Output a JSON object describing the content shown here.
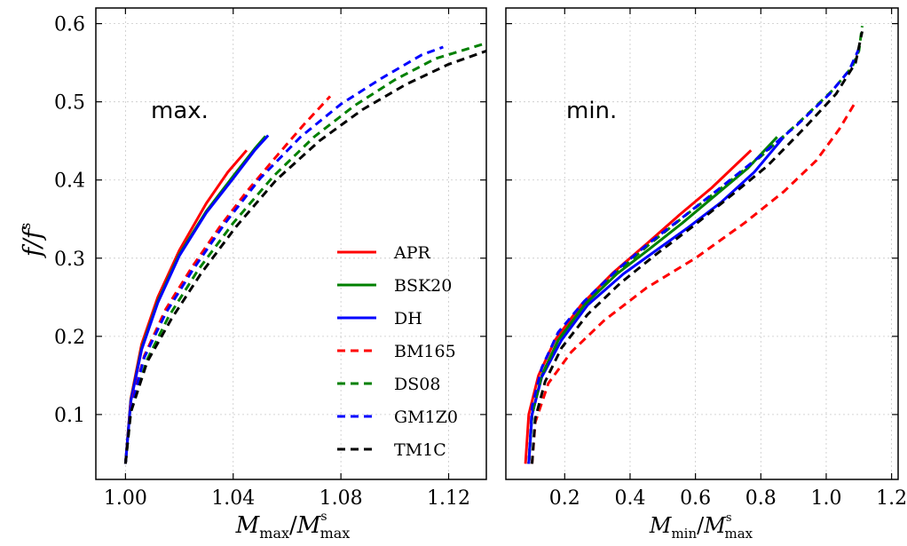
{
  "chart_data": [
    {
      "type": "line",
      "panel_label": "max.",
      "xlabel": "M_max/M^s_max",
      "ylabel": "f/f^s",
      "xlim": [
        0.989,
        1.134
      ],
      "ylim": [
        0.017,
        0.62
      ],
      "xticks": [
        1.0,
        1.04,
        1.08,
        1.12
      ],
      "xtick_labels": [
        "1.00",
        "1.04",
        "1.08",
        "1.12"
      ],
      "yticks": [
        0.1,
        0.2,
        0.3,
        0.4,
        0.5,
        0.6
      ],
      "ytick_labels": [
        "0.1",
        "0.2",
        "0.3",
        "0.4",
        "0.5",
        "0.6"
      ],
      "grid": true,
      "series": [
        {
          "name": "APR",
          "color": "#ff0000",
          "dash": "solid",
          "points": [
            [
              1.0,
              0.037
            ],
            [
              1.002,
              0.12
            ],
            [
              1.006,
              0.19
            ],
            [
              1.012,
              0.25
            ],
            [
              1.02,
              0.31
            ],
            [
              1.03,
              0.37
            ],
            [
              1.038,
              0.41
            ],
            [
              1.045,
              0.438
            ]
          ]
        },
        {
          "name": "BSK20",
          "color": "#008000",
          "dash": "solid",
          "points": [
            [
              1.0,
              0.037
            ],
            [
              1.002,
              0.118
            ],
            [
              1.006,
              0.185
            ],
            [
              1.012,
              0.245
            ],
            [
              1.02,
              0.305
            ],
            [
              1.03,
              0.36
            ],
            [
              1.04,
              0.405
            ],
            [
              1.048,
              0.44
            ],
            [
              1.052,
              0.456
            ]
          ]
        },
        {
          "name": "DH",
          "color": "#0000ff",
          "dash": "solid",
          "points": [
            [
              1.0,
              0.037
            ],
            [
              1.002,
              0.117
            ],
            [
              1.006,
              0.183
            ],
            [
              1.012,
              0.243
            ],
            [
              1.02,
              0.303
            ],
            [
              1.03,
              0.358
            ],
            [
              1.04,
              0.402
            ],
            [
              1.048,
              0.438
            ],
            [
              1.053,
              0.457
            ]
          ]
        },
        {
          "name": "BM165",
          "color": "#ff0000",
          "dash": "dashed",
          "points": [
            [
              1.0,
              0.037
            ],
            [
              1.002,
              0.11
            ],
            [
              1.007,
              0.175
            ],
            [
              1.015,
              0.235
            ],
            [
              1.025,
              0.29
            ],
            [
              1.035,
              0.34
            ],
            [
              1.045,
              0.385
            ],
            [
              1.056,
              0.43
            ],
            [
              1.066,
              0.47
            ],
            [
              1.076,
              0.507
            ]
          ]
        },
        {
          "name": "DS08",
          "color": "#008000",
          "dash": "dashed",
          "points": [
            [
              1.0,
              0.037
            ],
            [
              1.002,
              0.105
            ],
            [
              1.008,
              0.17
            ],
            [
              1.016,
              0.225
            ],
            [
              1.027,
              0.285
            ],
            [
              1.04,
              0.345
            ],
            [
              1.055,
              0.405
            ],
            [
              1.07,
              0.455
            ],
            [
              1.085,
              0.495
            ],
            [
              1.1,
              0.528
            ],
            [
              1.115,
              0.555
            ],
            [
              1.134,
              0.575
            ]
          ]
        },
        {
          "name": "GM1Z0",
          "color": "#0000ff",
          "dash": "dashed",
          "points": [
            [
              1.0,
              0.037
            ],
            [
              1.002,
              0.108
            ],
            [
              1.007,
              0.173
            ],
            [
              1.015,
              0.23
            ],
            [
              1.025,
              0.285
            ],
            [
              1.037,
              0.345
            ],
            [
              1.05,
              0.402
            ],
            [
              1.065,
              0.455
            ],
            [
              1.08,
              0.497
            ],
            [
              1.095,
              0.53
            ],
            [
              1.11,
              0.56
            ],
            [
              1.118,
              0.57
            ]
          ]
        },
        {
          "name": "TM1C",
          "color": "#000000",
          "dash": "dashed",
          "points": [
            [
              1.0,
              0.037
            ],
            [
              1.002,
              0.103
            ],
            [
              1.008,
              0.167
            ],
            [
              1.017,
              0.222
            ],
            [
              1.028,
              0.28
            ],
            [
              1.041,
              0.34
            ],
            [
              1.056,
              0.4
            ],
            [
              1.072,
              0.45
            ],
            [
              1.088,
              0.49
            ],
            [
              1.104,
              0.522
            ],
            [
              1.12,
              0.548
            ],
            [
              1.134,
              0.565
            ]
          ]
        }
      ]
    },
    {
      "type": "line",
      "panel_label": "min.",
      "xlabel": "M_min/M^s_max",
      "ylabel": "",
      "xlim": [
        0.02,
        1.22
      ],
      "ylim": [
        0.017,
        0.62
      ],
      "xticks": [
        0.2,
        0.4,
        0.6,
        0.8,
        1.0,
        1.2
      ],
      "xtick_labels": [
        "0.2",
        "0.4",
        "0.6",
        "0.8",
        "1.0",
        "1.2"
      ],
      "yticks": [
        0.1,
        0.2,
        0.3,
        0.4,
        0.5,
        0.6
      ],
      "ytick_labels": [],
      "grid": true,
      "series": [
        {
          "name": "APR",
          "color": "#ff0000",
          "dash": "solid",
          "points": [
            [
              0.08,
              0.037
            ],
            [
              0.09,
              0.1
            ],
            [
              0.12,
              0.15
            ],
            [
              0.17,
              0.195
            ],
            [
              0.25,
              0.24
            ],
            [
              0.35,
              0.282
            ],
            [
              0.45,
              0.318
            ],
            [
              0.55,
              0.355
            ],
            [
              0.65,
              0.39
            ],
            [
              0.77,
              0.438
            ]
          ]
        },
        {
          "name": "BSK20",
          "color": "#008000",
          "dash": "solid",
          "points": [
            [
              0.09,
              0.037
            ],
            [
              0.1,
              0.1
            ],
            [
              0.13,
              0.15
            ],
            [
              0.18,
              0.195
            ],
            [
              0.26,
              0.24
            ],
            [
              0.36,
              0.28
            ],
            [
              0.46,
              0.312
            ],
            [
              0.56,
              0.345
            ],
            [
              0.66,
              0.38
            ],
            [
              0.76,
              0.415
            ],
            [
              0.85,
              0.455
            ]
          ]
        },
        {
          "name": "DH",
          "color": "#0000ff",
          "dash": "solid",
          "points": [
            [
              0.09,
              0.037
            ],
            [
              0.1,
              0.1
            ],
            [
              0.13,
              0.148
            ],
            [
              0.19,
              0.195
            ],
            [
              0.27,
              0.24
            ],
            [
              0.38,
              0.28
            ],
            [
              0.48,
              0.31
            ],
            [
              0.58,
              0.34
            ],
            [
              0.68,
              0.372
            ],
            [
              0.78,
              0.41
            ],
            [
              0.87,
              0.455
            ]
          ]
        },
        {
          "name": "BM165",
          "color": "#ff0000",
          "dash": "dashed",
          "points": [
            [
              0.1,
              0.037
            ],
            [
              0.11,
              0.09
            ],
            [
              0.15,
              0.14
            ],
            [
              0.22,
              0.18
            ],
            [
              0.32,
              0.22
            ],
            [
              0.45,
              0.262
            ],
            [
              0.6,
              0.3
            ],
            [
              0.75,
              0.345
            ],
            [
              0.87,
              0.385
            ],
            [
              0.97,
              0.425
            ],
            [
              1.04,
              0.465
            ],
            [
              1.09,
              0.5
            ]
          ]
        },
        {
          "name": "DS08",
          "color": "#008000",
          "dash": "dashed",
          "points": [
            [
              0.09,
              0.037
            ],
            [
              0.1,
              0.1
            ],
            [
              0.13,
              0.15
            ],
            [
              0.18,
              0.195
            ],
            [
              0.26,
              0.24
            ],
            [
              0.36,
              0.282
            ],
            [
              0.46,
              0.318
            ],
            [
              0.57,
              0.355
            ],
            [
              0.68,
              0.39
            ],
            [
              0.8,
              0.43
            ],
            [
              0.92,
              0.475
            ],
            [
              1.02,
              0.515
            ],
            [
              1.08,
              0.545
            ],
            [
              1.1,
              0.565
            ],
            [
              1.11,
              0.597
            ]
          ]
        },
        {
          "name": "GM1Z0",
          "color": "#0000ff",
          "dash": "dashed",
          "points": [
            [
              0.09,
              0.037
            ],
            [
              0.1,
              0.11
            ],
            [
              0.13,
              0.16
            ],
            [
              0.18,
              0.205
            ],
            [
              0.26,
              0.245
            ],
            [
              0.36,
              0.285
            ],
            [
              0.46,
              0.32
            ],
            [
              0.56,
              0.352
            ],
            [
              0.67,
              0.388
            ],
            [
              0.79,
              0.428
            ],
            [
              0.91,
              0.47
            ],
            [
              1.01,
              0.51
            ],
            [
              1.07,
              0.54
            ],
            [
              1.1,
              0.568
            ]
          ]
        },
        {
          "name": "TM1C",
          "color": "#000000",
          "dash": "dashed",
          "points": [
            [
              0.1,
              0.037
            ],
            [
              0.11,
              0.095
            ],
            [
              0.14,
              0.142
            ],
            [
              0.19,
              0.185
            ],
            [
              0.27,
              0.228
            ],
            [
              0.37,
              0.268
            ],
            [
              0.48,
              0.305
            ],
            [
              0.59,
              0.34
            ],
            [
              0.7,
              0.377
            ],
            [
              0.82,
              0.418
            ],
            [
              0.93,
              0.465
            ],
            [
              1.03,
              0.51
            ],
            [
              1.09,
              0.55
            ],
            [
              1.11,
              0.59
            ]
          ]
        }
      ]
    }
  ],
  "legend": {
    "placement": "lower-right of left panel",
    "entries": [
      {
        "name": "APR",
        "color": "#ff0000",
        "dash": "solid"
      },
      {
        "name": "BSK20",
        "color": "#008000",
        "dash": "solid"
      },
      {
        "name": "DH",
        "color": "#0000ff",
        "dash": "solid"
      },
      {
        "name": "BM165",
        "color": "#ff0000",
        "dash": "dashed"
      },
      {
        "name": "DS08",
        "color": "#008000",
        "dash": "dashed"
      },
      {
        "name": "GM1Z0",
        "color": "#0000ff",
        "dash": "dashed"
      },
      {
        "name": "TM1C",
        "color": "#000000",
        "dash": "dashed"
      }
    ]
  }
}
